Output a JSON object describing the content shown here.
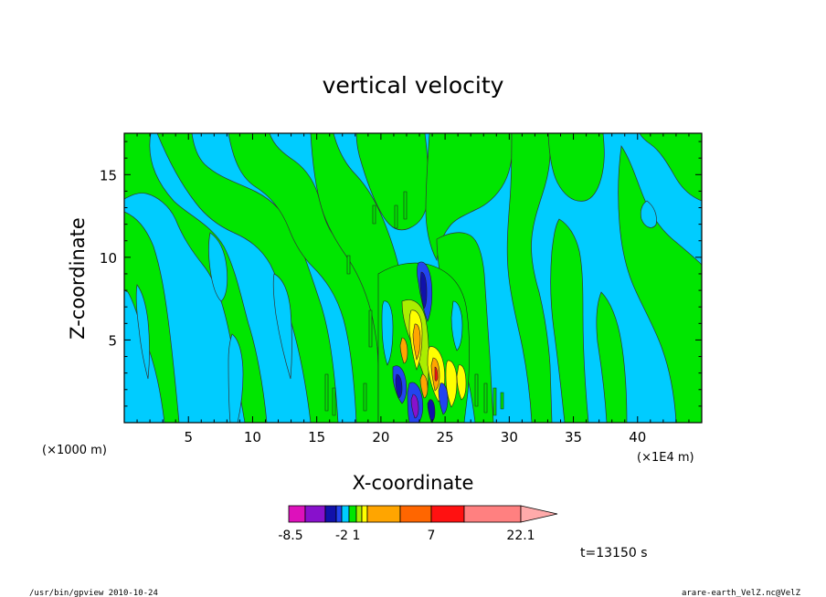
{
  "chart_data": {
    "type": "heatmap",
    "title": "vertical velocity",
    "xlabel": "X-coordinate",
    "ylabel": "Z-coordinate",
    "x_unit_left": "(×1000 m)",
    "x_unit_right": "(×1E4 m)",
    "xlim": [
      0,
      45
    ],
    "ylim": [
      0,
      17.5
    ],
    "x_ticks": [
      5,
      10,
      15,
      20,
      25,
      30,
      35,
      40
    ],
    "y_ticks": [
      5,
      10,
      15
    ],
    "levels": [
      -8.5,
      -7,
      -5.5,
      -4,
      -2,
      -1,
      1,
      2,
      3,
      4,
      7,
      10,
      12.5,
      15,
      22.1
    ],
    "level_labels": [
      "-8.5",
      "-2",
      "1",
      "7",
      "22.1"
    ],
    "level_label_values": [
      -8.5,
      -2,
      1,
      7,
      22.1
    ],
    "colors": [
      "#dd11bb",
      "#8811cc",
      "#1111aa",
      "#2244ee",
      "#00ccff",
      "#00e600",
      "#aaee00",
      "#ffff00",
      "#ffa500",
      "#ff6600",
      "#ff1111",
      "#ff8080"
    ],
    "time_label": "t=13150 s"
  },
  "footer": {
    "left": "/usr/bin/gpview   2010-10-24",
    "right": "arare-earth_VelZ.nc@VelZ"
  }
}
